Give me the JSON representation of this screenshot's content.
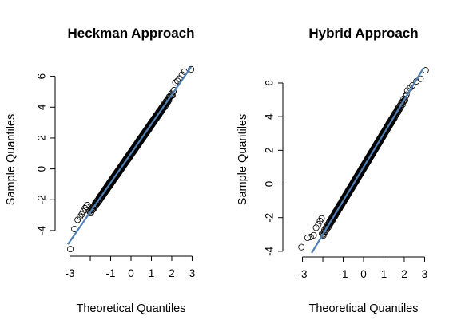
{
  "chart_data": [
    {
      "type": "scatter",
      "title": "Heckman Approach",
      "xlabel": "Theoretical Quantiles",
      "ylabel": "Sample Quantiles",
      "xlim": [
        -3.1,
        3.1
      ],
      "ylim": [
        -5.4,
        6.6
      ],
      "xticks": [
        -3,
        -2,
        -1,
        0,
        1,
        2,
        3
      ],
      "xtick_labels": [
        "-3",
        "",
        "-1",
        "0",
        "1",
        "2",
        "3"
      ],
      "yticks": [
        -4,
        -2,
        0,
        2,
        4,
        6
      ],
      "ytick_labels": [
        "-4",
        "-2",
        "0",
        "2",
        "4",
        "6"
      ],
      "reference_line": {
        "intercept": 1.0,
        "slope": 1.9
      },
      "tail_points": [
        [
          -2.98,
          -5.2
        ],
        [
          -2.78,
          -3.9
        ],
        [
          -2.62,
          -3.3
        ],
        [
          -2.5,
          -3.1
        ],
        [
          -2.42,
          -2.95
        ],
        [
          -2.34,
          -2.75
        ],
        [
          -2.26,
          -2.55
        ],
        [
          -2.2,
          -2.45
        ],
        [
          -2.14,
          -2.35
        ],
        [
          2.18,
          5.6
        ],
        [
          2.28,
          5.7
        ],
        [
          2.38,
          5.85
        ],
        [
          2.5,
          6.1
        ],
        [
          2.62,
          6.3
        ],
        [
          2.95,
          6.45
        ]
      ],
      "n_body_points": 600,
      "grid": false
    },
    {
      "type": "scatter",
      "title": "Hybrid Approach",
      "xlabel": "Theoretical Quantiles",
      "ylabel": "Sample Quantiles",
      "xlim": [
        -3.1,
        3.1
      ],
      "ylim": [
        -4.1,
        6.9
      ],
      "xticks": [
        -3,
        -2,
        -1,
        0,
        1,
        2,
        3
      ],
      "xtick_labels": [
        "-3",
        "",
        "-1",
        "0",
        "1",
        "2",
        "3"
      ],
      "yticks": [
        -4,
        -2,
        0,
        2,
        4,
        6
      ],
      "ytick_labels": [
        "-4",
        "-2",
        "0",
        "2",
        "4",
        "6"
      ],
      "reference_line": {
        "intercept": 1.0,
        "slope": 2.0
      },
      "tail_points": [
        [
          -3.05,
          -3.75
        ],
        [
          -2.75,
          -3.2
        ],
        [
          -2.6,
          -3.15
        ],
        [
          -2.45,
          -3.05
        ],
        [
          -2.33,
          -2.6
        ],
        [
          -2.22,
          -2.4
        ],
        [
          -2.14,
          -2.2
        ],
        [
          -2.06,
          -2.05
        ],
        [
          2.15,
          5.55
        ],
        [
          2.28,
          5.7
        ],
        [
          2.4,
          5.85
        ],
        [
          2.6,
          6.1
        ],
        [
          2.8,
          6.25
        ],
        [
          3.05,
          6.75
        ]
      ],
      "n_body_points": 600,
      "grid": false
    }
  ]
}
